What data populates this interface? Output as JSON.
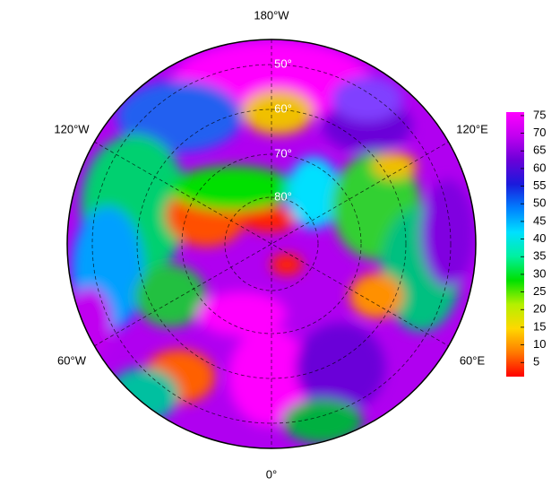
{
  "map": {
    "lon_labels": [
      "180°W",
      "120°W",
      "120°E",
      "60°W",
      "60°E",
      "0°"
    ],
    "lat_labels": [
      "50°",
      "60°",
      "70°",
      "80°"
    ]
  },
  "colorbar": {
    "lim": [
      1,
      76
    ],
    "ticks": [
      5,
      10,
      15,
      20,
      25,
      30,
      35,
      40,
      45,
      50,
      55,
      60,
      65,
      70,
      75
    ],
    "colors": [
      "#ff0000",
      "#ff7a00",
      "#ffd800",
      "#b4f000",
      "#00e000",
      "#00f0a0",
      "#00e0ff",
      "#0080ff",
      "#1a1adc",
      "#6a00d8",
      "#c000f0",
      "#ff00ff"
    ]
  }
}
